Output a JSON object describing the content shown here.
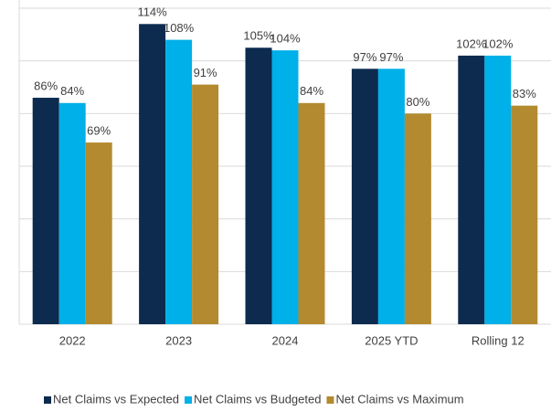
{
  "chart_data": {
    "type": "bar",
    "categories": [
      "2022",
      "2023",
      "2024",
      "2025 YTD",
      "Rolling 12"
    ],
    "series": [
      {
        "name": "Net Claims vs Expected",
        "color": "#0c2b4f",
        "values": [
          86,
          114,
          105,
          97,
          102
        ],
        "value_labels": [
          "86%",
          "114%",
          "105%",
          "97%",
          "102%"
        ]
      },
      {
        "name": "Net Claims vs Budgeted",
        "color": "#00b0e8",
        "values": [
          84,
          108,
          104,
          97,
          102
        ],
        "value_labels": [
          "84%",
          "108%",
          "104%",
          "97%",
          "102%"
        ]
      },
      {
        "name": "Net Claims vs Maximum",
        "color": "#b38a2f",
        "values": [
          69,
          91,
          84,
          80,
          83
        ],
        "value_labels": [
          "69%",
          "91%",
          "84%",
          "80%",
          "83%"
        ]
      }
    ],
    "ylim": [
      0,
      120
    ],
    "yticks": [
      0,
      20,
      40,
      60,
      80,
      100,
      120
    ],
    "grid": true,
    "legend": "bottom"
  }
}
